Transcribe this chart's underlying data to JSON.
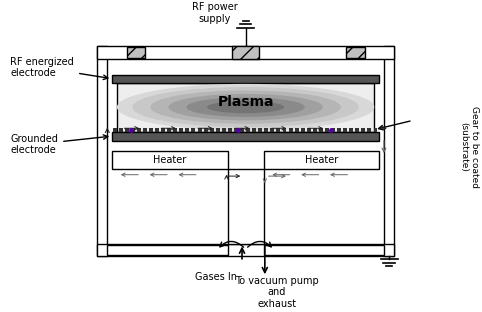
{
  "bg_color": "#ffffff",
  "labels": {
    "rf_power": "RF power\nsupply",
    "rf_electrode": "RF energized\nelectrode",
    "grounded": "Grounded\nelectrode",
    "gases_in": "Gases In",
    "vacuum": "To vacuum pump\nand\nexhaust",
    "gear": "Gear to be coated\n(substrate)"
  },
  "plasma_text": "Plasma",
  "electrode_dark": "#555555",
  "electrode_mid": "#777777",
  "tooth_color": "#333333",
  "hatch_color": "#888888",
  "plasma_grays": [
    "#e0e0e0",
    "#cccccc",
    "#b8b8b8",
    "#a0a0a0",
    "#888888",
    "#707070"
  ],
  "purple_dot": "#5500aa",
  "arrow_dark": "#222222",
  "arrow_mid": "#666666"
}
